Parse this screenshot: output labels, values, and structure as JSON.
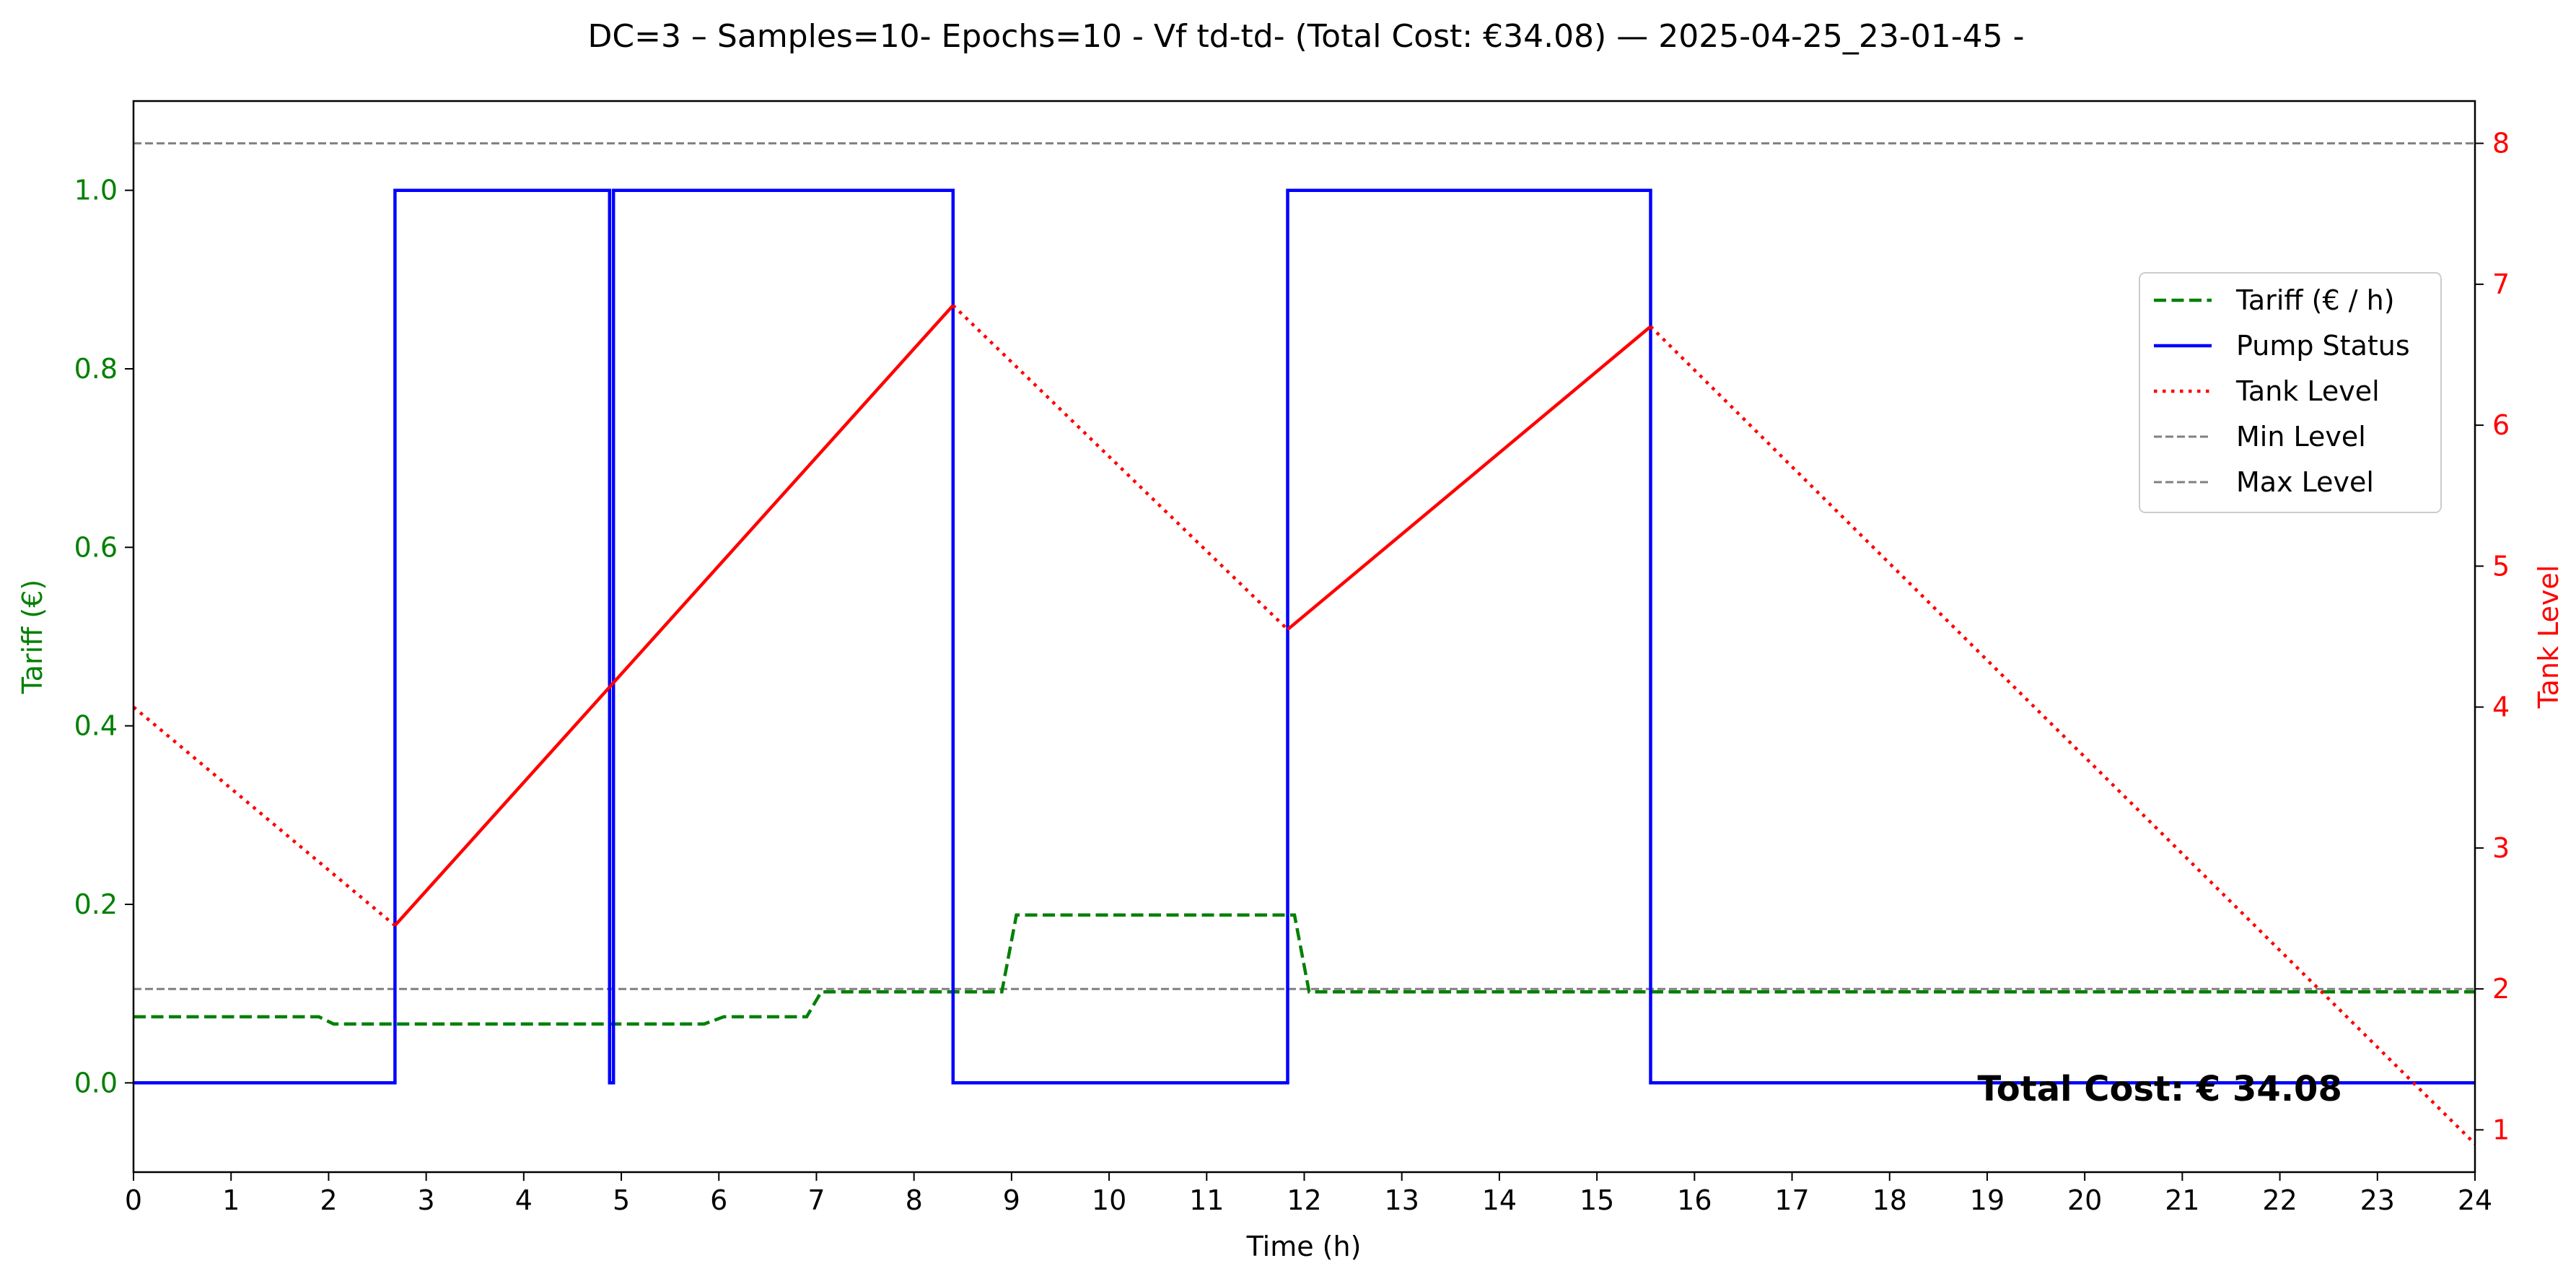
{
  "chart_data": {
    "type": "line",
    "title": "DC=3 – Samples=10- Epochs=10 - Vf td-td- (Total Cost: €34.08) — 2025-04-25_23-01-45 -",
    "xlabel": "Time (h)",
    "ylabel_left": "Tariff (€)",
    "ylabel_right": "Tank Level",
    "xlim": [
      0,
      24
    ],
    "ylim_left": [
      -0.1,
      1.1
    ],
    "ylim_right": [
      0.7,
      8.3
    ],
    "x_ticks": [
      "0",
      "1",
      "2",
      "3",
      "4",
      "5",
      "6",
      "7",
      "8",
      "9",
      "10",
      "11",
      "12",
      "13",
      "14",
      "15",
      "16",
      "17",
      "18",
      "19",
      "20",
      "21",
      "22",
      "23",
      "24"
    ],
    "y_left_ticks": [
      "0.0",
      "0.2",
      "0.4",
      "0.6",
      "0.8",
      "1.0"
    ],
    "y_right_ticks": [
      "1",
      "2",
      "3",
      "4",
      "5",
      "6",
      "7",
      "8"
    ],
    "grid": false,
    "legend_position": "right",
    "colors": {
      "tariff": "#008000",
      "pump": "#0000ff",
      "tank": "#ff0000",
      "levels": "#808080",
      "left_axis": "#008000",
      "right_axis": "#ff0000"
    },
    "series": [
      {
        "name": "Tariff (€ / h)",
        "axis": "left",
        "style": "dashed",
        "points": [
          [
            0,
            0.074
          ],
          [
            1.9,
            0.074
          ],
          [
            2.05,
            0.066
          ],
          [
            5.85,
            0.066
          ],
          [
            6.05,
            0.074
          ],
          [
            6.9,
            0.074
          ],
          [
            7.05,
            0.102
          ],
          [
            8.9,
            0.102
          ],
          [
            9.05,
            0.188
          ],
          [
            11.9,
            0.188
          ],
          [
            12.05,
            0.102
          ],
          [
            24,
            0.102
          ]
        ]
      },
      {
        "name": "Pump Status",
        "axis": "left",
        "style": "solid",
        "points": [
          [
            0,
            0
          ],
          [
            2.68,
            0
          ],
          [
            2.68,
            1
          ],
          [
            4.88,
            1
          ],
          [
            4.88,
            0
          ],
          [
            4.92,
            0
          ],
          [
            4.92,
            1
          ],
          [
            8.4,
            1
          ],
          [
            8.4,
            0
          ],
          [
            11.83,
            0
          ],
          [
            11.83,
            1
          ],
          [
            15.55,
            1
          ],
          [
            15.55,
            0
          ],
          [
            24,
            0
          ]
        ]
      },
      {
        "name": "Tank Level",
        "axis": "right",
        "segments": [
          {
            "style": "dotted",
            "points": [
              [
                0,
                4.0
              ],
              [
                2.68,
                2.45
              ]
            ]
          },
          {
            "style": "solid",
            "points": [
              [
                2.68,
                2.45
              ],
              [
                8.4,
                6.85
              ]
            ]
          },
          {
            "style": "dotted",
            "points": [
              [
                8.4,
                6.85
              ],
              [
                11.83,
                4.55
              ]
            ]
          },
          {
            "style": "solid",
            "points": [
              [
                11.83,
                4.55
              ],
              [
                15.55,
                6.7
              ]
            ]
          },
          {
            "style": "dotted",
            "points": [
              [
                15.55,
                6.7
              ],
              [
                24,
                0.9
              ]
            ]
          }
        ]
      },
      {
        "name": "Min Level",
        "axis": "right",
        "style": "dashed-thin",
        "points": [
          [
            0,
            2.0
          ],
          [
            24,
            2.0
          ]
        ]
      },
      {
        "name": "Max Level",
        "axis": "right",
        "style": "dashed-thin",
        "points": [
          [
            0,
            8.0
          ],
          [
            24,
            8.0
          ]
        ]
      }
    ],
    "annotation": {
      "text": "Total Cost: € 34.08",
      "x": 18.9,
      "y_left": -0.02
    }
  }
}
